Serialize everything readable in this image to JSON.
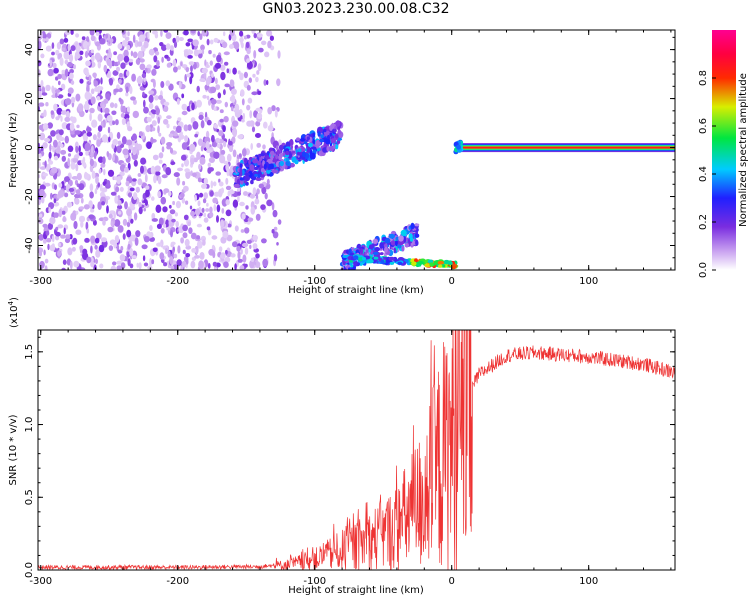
{
  "title": "GN03.2023.230.00.08.C32",
  "chart_data": [
    {
      "type": "heatmap",
      "xlabel": "Height of straight line (km)",
      "ylabel": "Frequency (Hz)",
      "xlim": [
        -302,
        163
      ],
      "ylim": [
        -50,
        48
      ],
      "xticks": [
        -300,
        -200,
        -100,
        0,
        100
      ],
      "yticks": [
        -40,
        -20,
        0,
        20,
        40
      ],
      "colorbar": {
        "label": "Normalized spectral amplitude",
        "range": [
          0,
          1
        ],
        "ticks": [
          "0.0",
          "0.2",
          "0.4",
          "0.6",
          "0.8"
        ],
        "colormap": "rainbow (white-purple-blue-cyan-green-yellow-red-magenta)"
      },
      "features": [
        {
          "name": "diffuse noise",
          "x": [
            -302,
            -125
          ],
          "y": [
            -50,
            48
          ],
          "amplitude": "low"
        },
        {
          "name": "ascending trace",
          "x": [
            -158,
            -80
          ],
          "y": [
            -12,
            6
          ],
          "amplitude": "medium"
        },
        {
          "name": "lower trace",
          "x": [
            -80,
            3
          ],
          "y": [
            -48,
            -45
          ],
          "amplitude": "medium-high"
        },
        {
          "name": "carrier",
          "x": [
            3,
            163
          ],
          "y": [
            0,
            0
          ],
          "amplitude": "high"
        }
      ]
    },
    {
      "type": "line",
      "xlabel": "Height of straight line (km)",
      "ylabel": "SNR (10 * v/v)",
      "yscale_label": "(x10",
      "yscale_exp": "4",
      "yscale_close": ")",
      "xlim": [
        -302,
        163
      ],
      "ylim": [
        0,
        1.65
      ],
      "xticks": [
        -300,
        -200,
        -100,
        0,
        100
      ],
      "yticks": [
        "0.0",
        "0.5",
        "1.0",
        "1.5"
      ],
      "color": "#ee3333",
      "profile": {
        "x": [
          -302,
          -200,
          -140,
          -120,
          -100,
          -80,
          -60,
          -40,
          -20,
          0,
          20,
          40,
          60,
          100,
          140,
          163
        ],
        "y": [
          0.02,
          0.02,
          0.025,
          0.04,
          0.08,
          0.15,
          0.22,
          0.32,
          0.55,
          1.0,
          1.35,
          1.48,
          1.5,
          1.47,
          1.42,
          1.36
        ]
      }
    }
  ]
}
